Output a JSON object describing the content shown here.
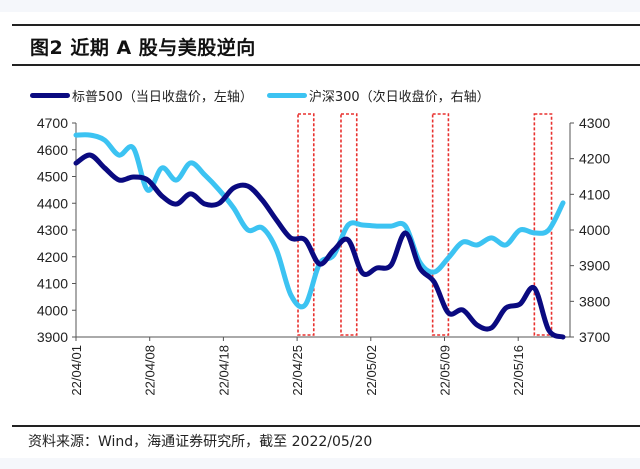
{
  "figure": {
    "title": "图2  近期 A 股与美股逆向",
    "source": "资料来源：Wind，海通证券研究所，截至 2022/05/20"
  },
  "legend": [
    {
      "label": "标普500（当日收盘价，左轴）",
      "color": "#0a0a80"
    },
    {
      "label": "沪深300（次日收盘价，右轴）",
      "color": "#3cc3f2"
    }
  ],
  "chart_data": {
    "type": "line",
    "title": "近期 A 股与美股逆向",
    "xlabel": "",
    "ylabel_left": "",
    "ylabel_right": "",
    "x_tick_labels": [
      "22/04/01",
      "22/04/08",
      "22/04/18",
      "22/04/25",
      "22/05/02",
      "22/05/09",
      "22/05/16"
    ],
    "x_tick_index": [
      0,
      5,
      10,
      15,
      20,
      25,
      30
    ],
    "n_points": 35,
    "y_left": {
      "min": 3900,
      "max": 4700,
      "ticks": [
        3900,
        4000,
        4100,
        4200,
        4300,
        4400,
        4500,
        4600,
        4700
      ]
    },
    "y_right": {
      "min": 3700,
      "max": 4300,
      "ticks": [
        3700,
        3800,
        3900,
        4000,
        4100,
        4200,
        4300
      ]
    },
    "series": [
      {
        "name": "标普500（当日收盘价，左轴）",
        "axis": "left",
        "color": "#0a0a80",
        "values": [
          4550,
          4580,
          4532,
          4487,
          4498,
          4487,
          4427,
          4397,
          4435,
          4397,
          4400,
          4457,
          4464,
          4412,
          4337,
          4270,
          4263,
          4173,
          4225,
          4263,
          4139,
          4158,
          4169,
          4289,
          4158,
          4106,
          3990,
          4001,
          3945,
          3934,
          4008,
          4023,
          4083,
          3926,
          3900
        ]
      },
      {
        "name": "沪深300（次日收盘价，右轴）",
        "axis": "right",
        "color": "#3cc3f2",
        "values": [
          4266,
          4266,
          4252,
          4210,
          4230,
          4112,
          4174,
          4140,
          4188,
          4154,
          4112,
          4062,
          4000,
          4006,
          3944,
          3818,
          3790,
          3905,
          3930,
          4014,
          4014,
          4011,
          4011,
          4011,
          3910,
          3882,
          3922,
          3966,
          3958,
          3978,
          3958,
          4000,
          3992,
          4000,
          4076
        ]
      }
    ],
    "highlight_ranges": [
      {
        "from_index": 15.5,
        "to_index": 16.6,
        "color": "#e8312f"
      },
      {
        "from_index": 18.5,
        "to_index": 19.6,
        "color": "#e8312f"
      },
      {
        "from_index": 24.9,
        "to_index": 26.0,
        "color": "#e8312f"
      },
      {
        "from_index": 32.0,
        "to_index": 33.2,
        "color": "#e8312f"
      }
    ],
    "grid": false,
    "legend_position": "top"
  }
}
